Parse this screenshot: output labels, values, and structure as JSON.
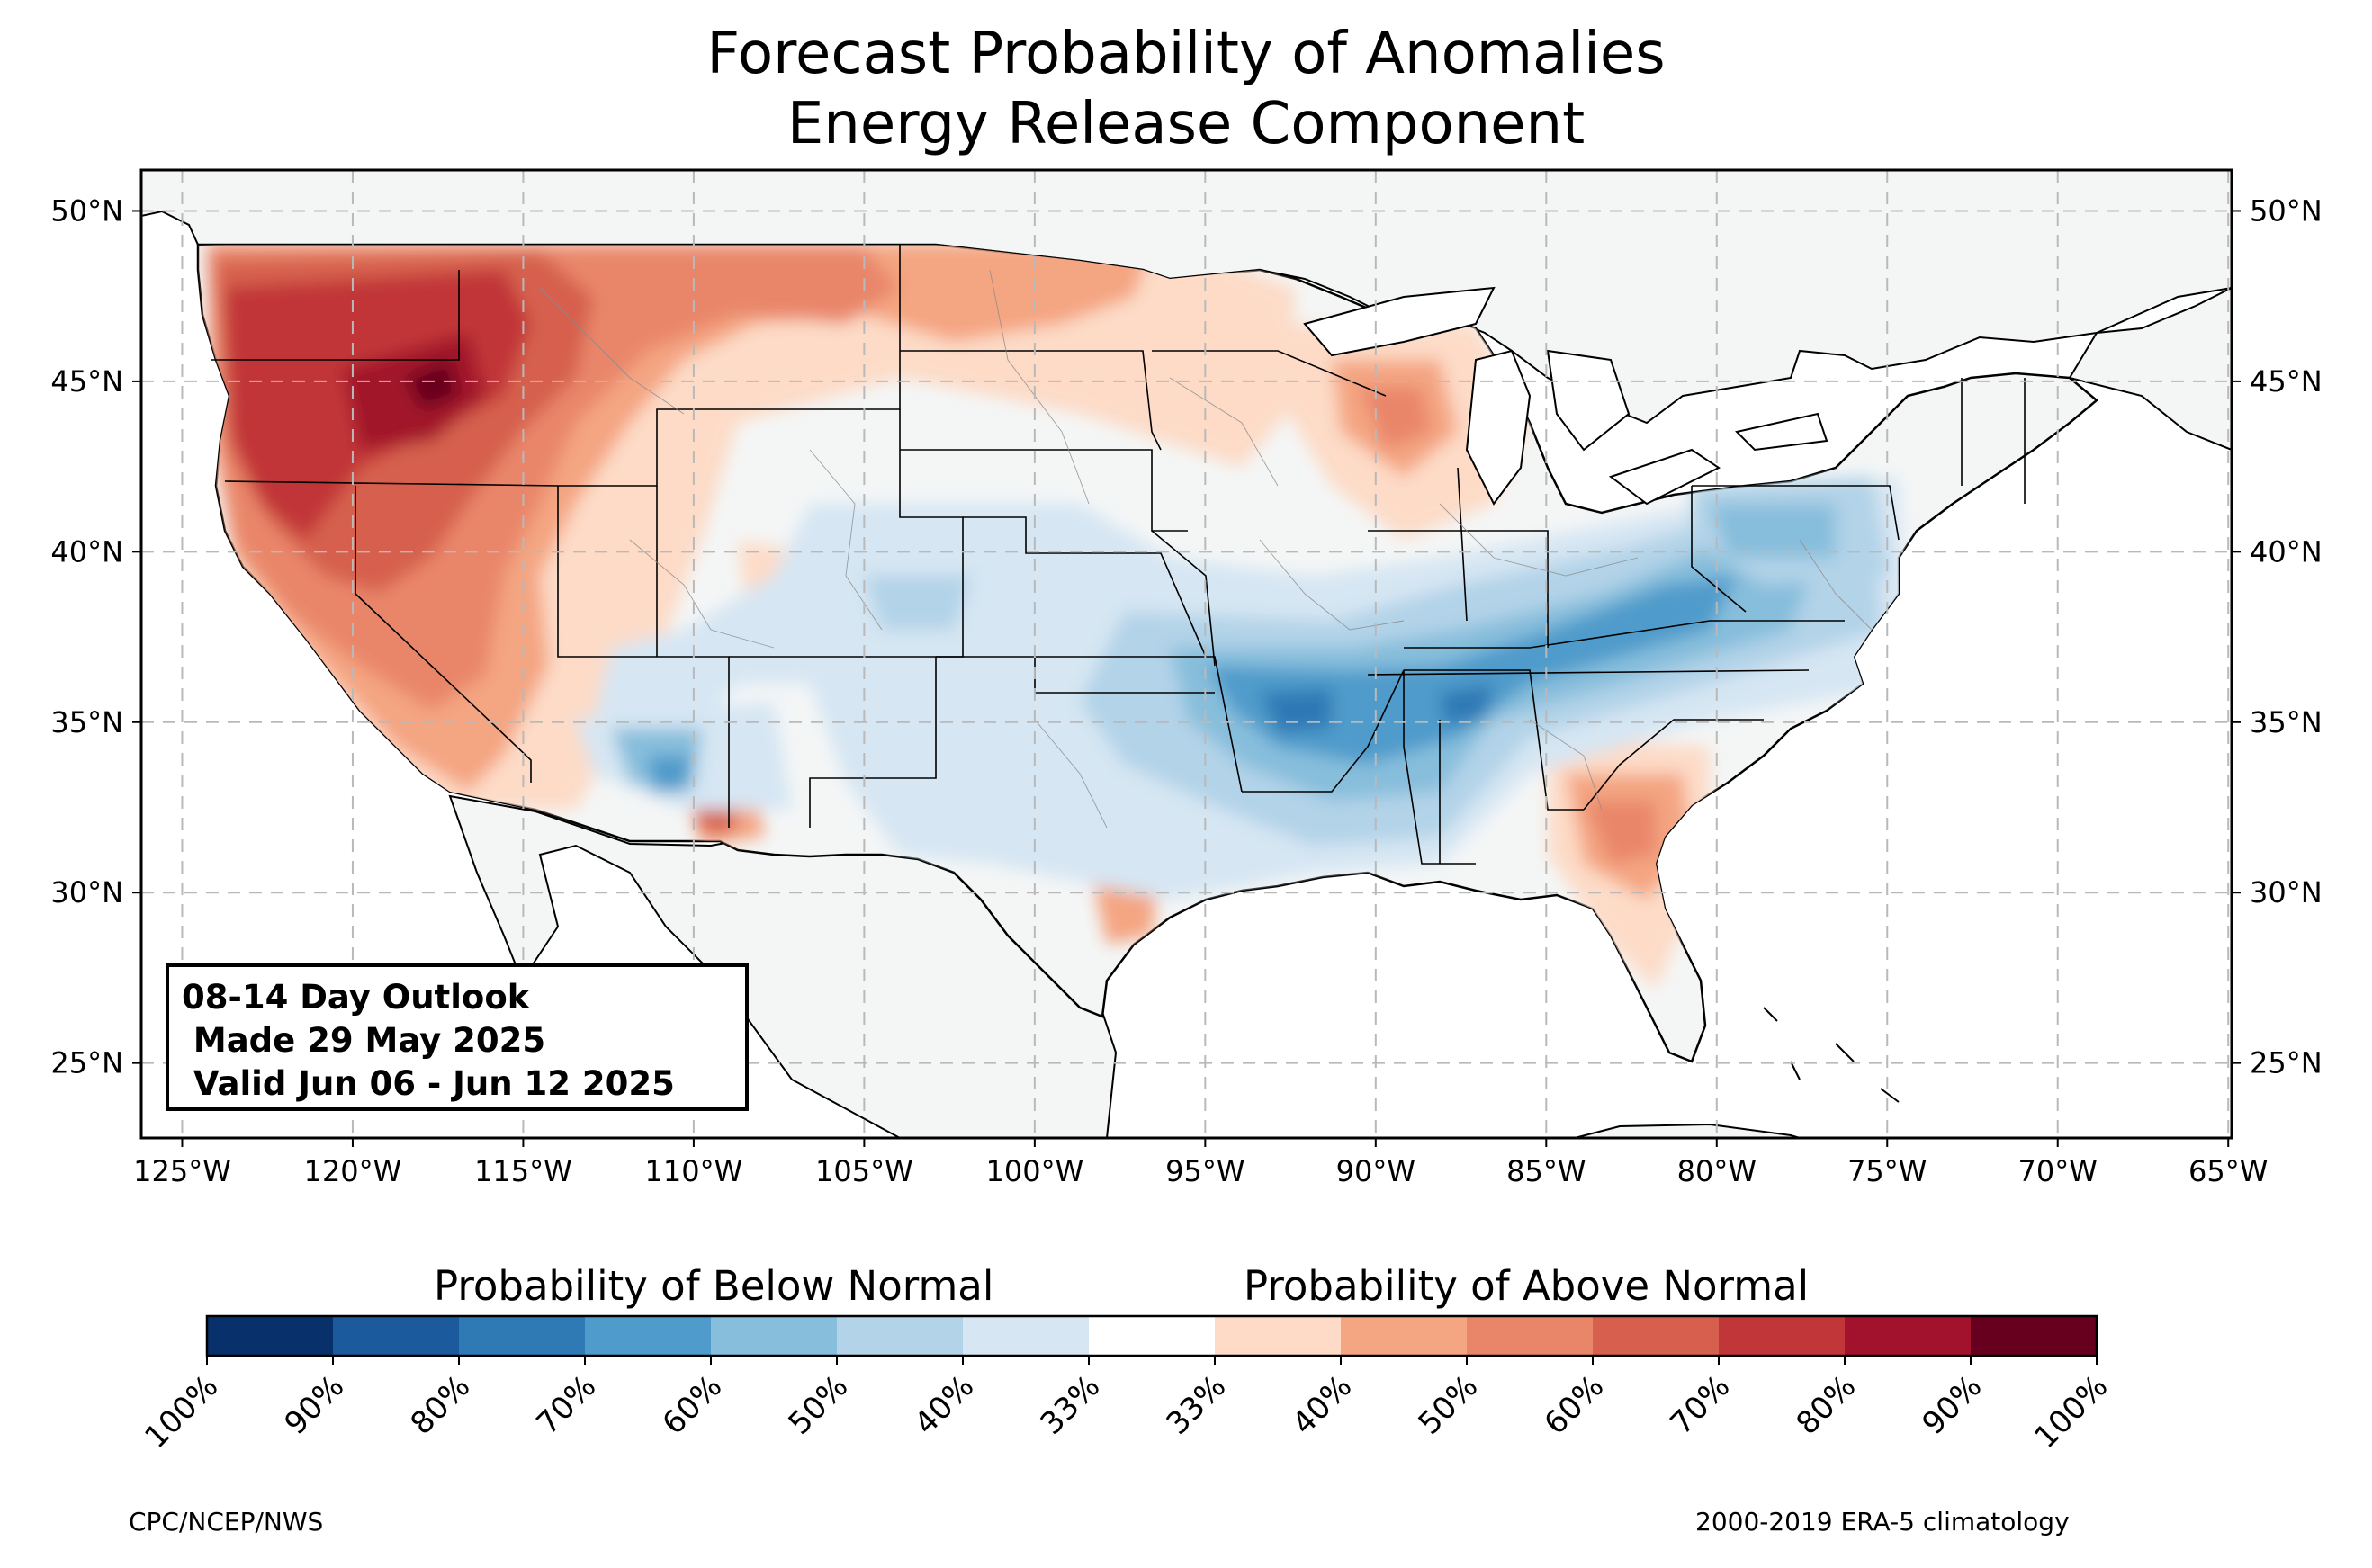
{
  "title": {
    "line1": "Forecast Probability of Anomalies",
    "line2": "Energy Release Component"
  },
  "outlook_box": {
    "line1": "08-14 Day Outlook",
    "line2": " Made 29 May 2025",
    "line3": " Valid Jun 06 - Jun 12 2025"
  },
  "map": {
    "lat_labels": [
      "25°N",
      "30°N",
      "35°N",
      "40°N",
      "45°N",
      "50°N"
    ],
    "lat_values": [
      25,
      30,
      35,
      40,
      45,
      50
    ],
    "lon_labels": [
      "125°W",
      "120°W",
      "115°W",
      "110°W",
      "105°W",
      "100°W",
      "95°W",
      "90°W",
      "85°W",
      "80°W",
      "75°W",
      "70°W",
      "65°W"
    ],
    "lon_values": [
      -125,
      -120,
      -115,
      -110,
      -105,
      -100,
      -95,
      -90,
      -85,
      -80,
      -75,
      -70,
      -65
    ],
    "extent": {
      "lon_min": -126.2,
      "lon_max": -64.9,
      "lat_min": 22.8,
      "lat_max": 51.2
    },
    "land_color": "#f4f6f6",
    "grid_style": "dashed light gray",
    "above_normal_regions": [
      "Pacific Northwest and northern Great Basin (70-90%)",
      "California and Nevada (50-80%)",
      "Northern Rockies and northern Plains (50-60%)",
      "Wisconsin and Upper Michigan (50%)",
      "Southeast Georgia / northern Florida (50-60%)",
      "Southern Arizona (60%)"
    ],
    "below_normal_regions": [
      "Arkansas, Mississippi and Tennessee Valley (50-70%)",
      "Ohio Valley and Mid-Atlantic (40-60%)",
      "Pennsylvania (50%)",
      "Central Arizona / New Mexico (40-60%)"
    ]
  },
  "colorbar": {
    "below_title": "Probability of Below Normal",
    "above_title": "Probability of Above Normal",
    "tick_labels": [
      "100%",
      "90%",
      "80%",
      "70%",
      "60%",
      "50%",
      "40%",
      "33%",
      "33%",
      "40%",
      "50%",
      "60%",
      "70%",
      "80%",
      "90%",
      "100%"
    ],
    "colors": [
      "#08306b",
      "#1b5a9c",
      "#2f79b5",
      "#4f9bcb",
      "#87bedc",
      "#b2d3e8",
      "#d6e6f3",
      "#ffffff",
      "#fddbc7",
      "#f4a582",
      "#e9866a",
      "#d6604d",
      "#c13639",
      "#a2122c",
      "#67001f"
    ]
  },
  "footer": {
    "left": "CPC/NCEP/NWS",
    "right": "2000-2019 ERA-5 climatology"
  }
}
